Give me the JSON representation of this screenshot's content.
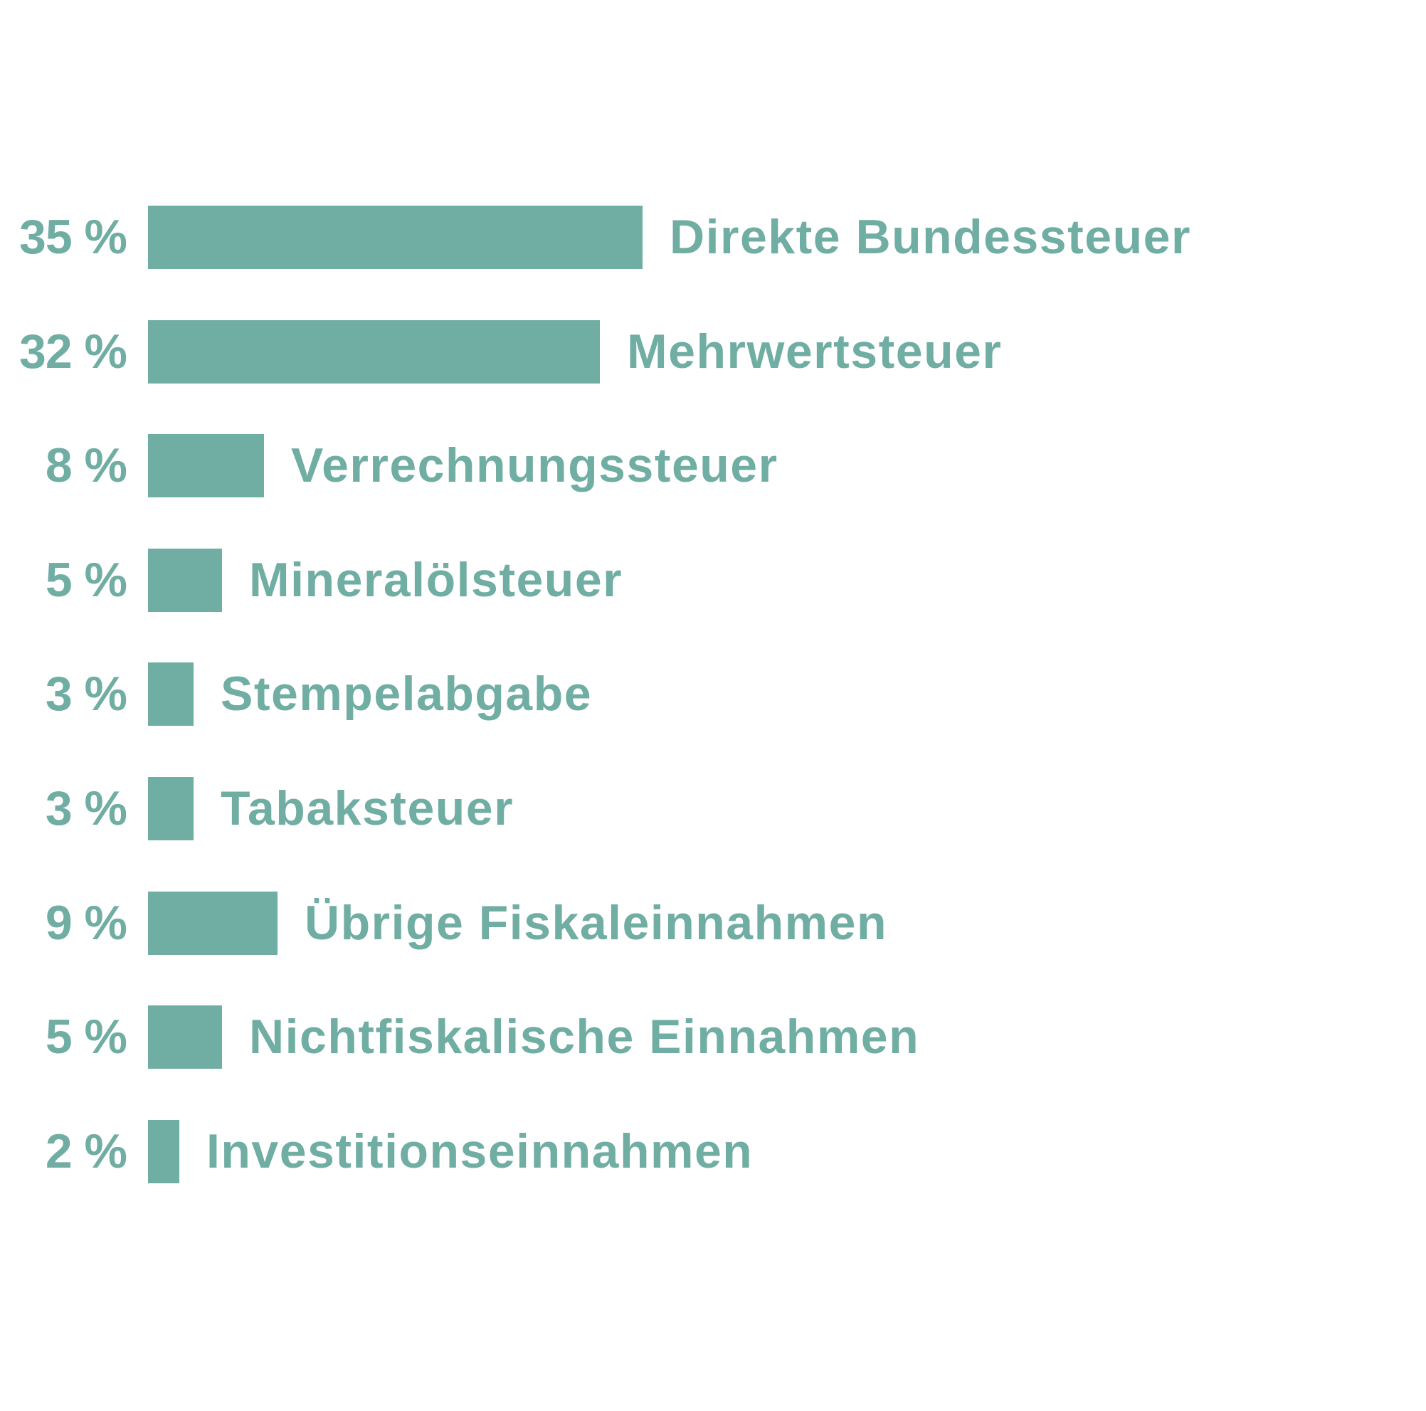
{
  "colors": {
    "bar": "#70ada3",
    "text": "#70ada3",
    "background": "#ffffff"
  },
  "rows": [
    {
      "value_label": "35 %",
      "label": "Direkte Bundessteuer"
    },
    {
      "value_label": "32 %",
      "label": "Mehrwertsteuer"
    },
    {
      "value_label": "8 %",
      "label": "Verrechnungssteuer"
    },
    {
      "value_label": "5 %",
      "label": "Mineralölsteuer"
    },
    {
      "value_label": "3 %",
      "label": "Stempelabgabe"
    },
    {
      "value_label": "3 %",
      "label": "Tabaksteuer"
    },
    {
      "value_label": "9 %",
      "label": "Übrige Fiskaleinnahmen"
    },
    {
      "value_label": "5 %",
      "label": "Nichtfiskalische Einnahmen"
    },
    {
      "value_label": "2 %",
      "label": "Investitionseinnahmen"
    }
  ],
  "chart_data": {
    "type": "bar",
    "orientation": "horizontal",
    "title": "",
    "xlabel": "",
    "ylabel": "",
    "categories": [
      "Direkte Bundessteuer",
      "Mehrwertsteuer",
      "Verrechnungssteuer",
      "Mineralölsteuer",
      "Stempelabgabe",
      "Tabaksteuer",
      "Übrige Fiskaleinnahmen",
      "Nichtfiskalische Einnahmen",
      "Investitionseinnahmen"
    ],
    "values": [
      35,
      32,
      8,
      5,
      3,
      3,
      9,
      5,
      2
    ],
    "unit": "%",
    "value_labels": [
      "35 %",
      "32 %",
      "8 %",
      "5 %",
      "3 %",
      "3 %",
      "9 %",
      "5 %",
      "2 %"
    ],
    "xlim": [
      0,
      35
    ],
    "grid": false,
    "legend": null,
    "data_labels_position": "left of bar",
    "category_labels_position": "right of bar"
  }
}
